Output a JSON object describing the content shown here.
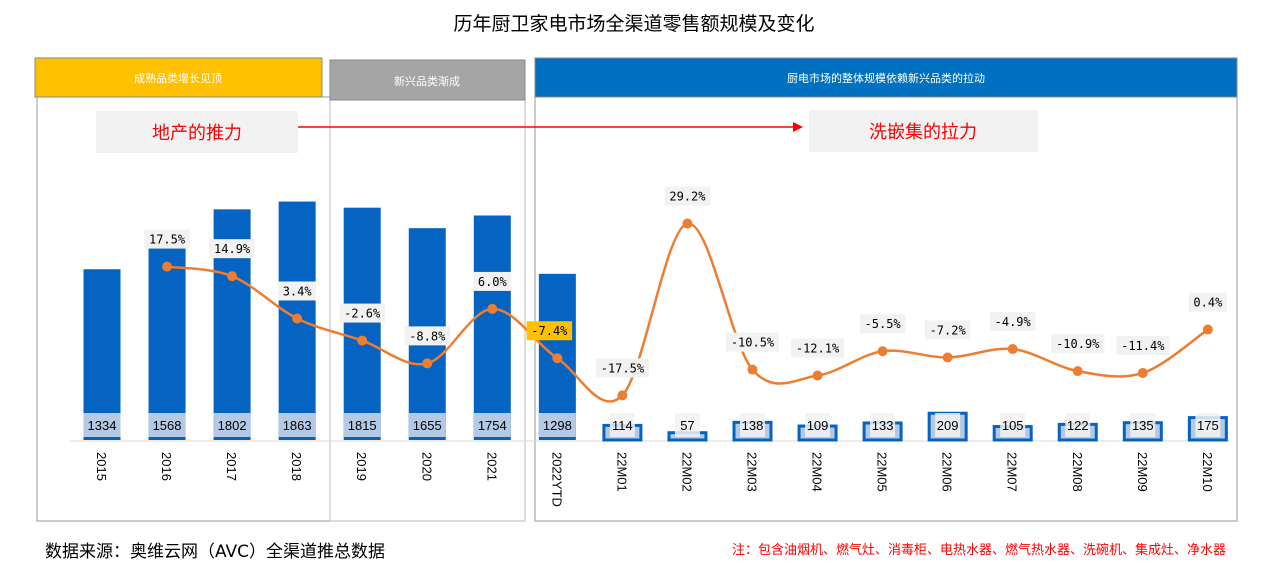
{
  "chart_data": {
    "type": "bar+line",
    "title": "历年厨卫家电市场全渠道零售额规模及变化",
    "categories": [
      "2015",
      "2016",
      "2017",
      "2018",
      "2019",
      "2020",
      "2021",
      "2022YTD",
      "22M01",
      "22M02",
      "22M03",
      "22M04",
      "22M05",
      "22M06",
      "22M07",
      "22M08",
      "22M09",
      "22M10"
    ],
    "series": [
      {
        "type": "bar",
        "values": [
          1334,
          1568,
          1802,
          1863,
          1815,
          1655,
          1754,
          1298,
          114,
          57,
          138,
          109,
          133,
          209,
          105,
          122,
          135,
          175
        ]
      },
      {
        "type": "line",
        "values": [
          null,
          17.5,
          14.9,
          3.4,
          -2.6,
          -8.8,
          6.0,
          -7.4,
          -17.5,
          29.2,
          -10.5,
          -12.1,
          -5.5,
          -7.2,
          -4.9,
          -10.9,
          -11.4,
          0.4
        ],
        "labels": [
          "",
          "17.5%",
          "14.9%",
          "3.4%",
          "-2.6%",
          "-8.8%",
          "6.0%",
          "-7.4%",
          "-17.5%",
          "29.2%",
          "-10.5%",
          "-12.1%",
          "-5.5%",
          "-7.2%",
          "-4.9%",
          "-10.9%",
          "-11.4%",
          "0.4%"
        ]
      }
    ],
    "colors": {
      "bar": "#0563c1",
      "bar_light": "#b4c9e3",
      "line": "#ed7d31",
      "highlight": "#ffc000"
    }
  },
  "panels": [
    {
      "label": "成熟品类增长见顶",
      "color": "#ffc000"
    },
    {
      "label": "新兴品类渐成",
      "color": "#a5a5a5"
    },
    {
      "label": "厨电市场的整体规模依赖新兴品类的拉动",
      "color": "#0070c0"
    }
  ],
  "forces": {
    "left": "地产的推力",
    "right": "洗嵌集的拉力"
  },
  "source": "数据来源：奥维云网（AVC）全渠道推总数据",
  "note": "注：包含油烟机、燃气灶、消毒柜、电热水器、燃气热水器、洗碗机、集成灶、净水器"
}
